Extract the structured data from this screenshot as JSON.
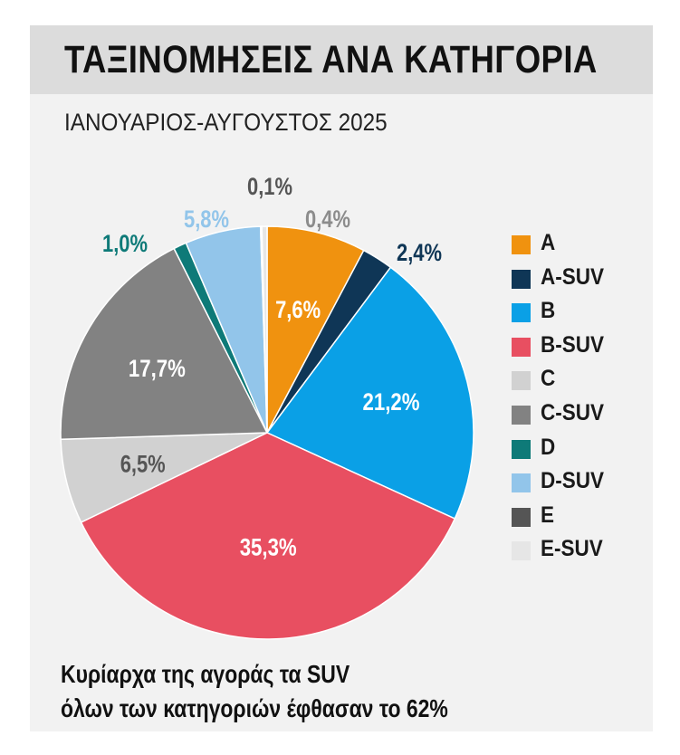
{
  "header": {
    "title": "ΤΑΞΙΝΟΜΗΣΕΙΣ ΑΝΑ ΚΑΤΗΓΟΡΙΑ",
    "subtitle": "ΙΑΝΟΥΑΡΙΟΣ-ΑΥΓΟΥΣΤΟΣ 2025"
  },
  "footer": {
    "line1": "Κυρίαρχα της αγοράς τα SUV",
    "line2": "όλων των κατηγοριών έφθασαν το 62%"
  },
  "chart_data": {
    "type": "pie",
    "title": "ΤΑΞΙΝΟΜΗΣΕΙΣ ΑΝΑ ΚΑΤΗΓΟΡΙΑ",
    "subtitle": "ΙΑΝΟΥΑΡΙΟΣ-ΑΥΓΟΥΣΤΟΣ 2025",
    "legend_position": "right",
    "slices": [
      {
        "name": "A",
        "value": 7.6,
        "label": "7,6%",
        "color": "#f0920f",
        "label_color": "#ffffff",
        "label_inside": true
      },
      {
        "name": "A-SUV",
        "value": 2.4,
        "label": "2,4%",
        "color": "#0f3656",
        "label_color": "#0f3656",
        "label_inside": false
      },
      {
        "name": "B",
        "value": 21.2,
        "label": "21,2%",
        "color": "#0aa0e6",
        "label_color": "#ffffff",
        "label_inside": true
      },
      {
        "name": "B-SUV",
        "value": 35.3,
        "label": "35,3%",
        "color": "#e84f61",
        "label_color": "#ffffff",
        "label_inside": true
      },
      {
        "name": "C",
        "value": 6.5,
        "label": "6,5%",
        "color": "#d1d1d1",
        "label_color": "#555555",
        "label_inside": true
      },
      {
        "name": "C-SUV",
        "value": 17.7,
        "label": "17,7%",
        "color": "#828282",
        "label_color": "#ffffff",
        "label_inside": true
      },
      {
        "name": "D",
        "value": 1.0,
        "label": "1,0%",
        "color": "#0e7a78",
        "label_color": "#0e7a78",
        "label_inside": false
      },
      {
        "name": "D-SUV",
        "value": 5.8,
        "label": "5,8%",
        "color": "#92c5ea",
        "label_color": "#92c5ea",
        "label_inside": false
      },
      {
        "name": "E",
        "value": 0.1,
        "label": "0,1%",
        "color": "#555555",
        "label_color": "#555555",
        "label_inside": false
      },
      {
        "name": "E-SUV",
        "value": 0.4,
        "label": "0,4%",
        "color": "#e6e6e6",
        "label_color": "#8c8c8c",
        "label_inside": false
      }
    ]
  }
}
